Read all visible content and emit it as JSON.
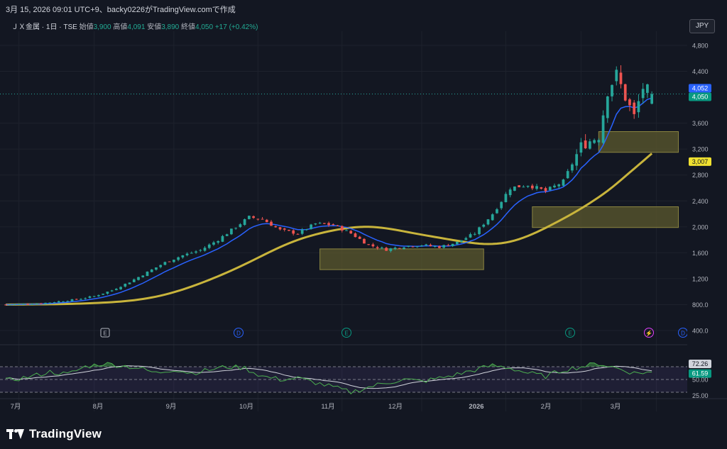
{
  "header": {
    "caption": "3月 15, 2026 09:01 UTC+9、backy0226がTradingView.comで作成"
  },
  "legend": {
    "symbol": "ＪＸ金属 · 1日 · TSE",
    "open_label": "始値",
    "open": "3,900",
    "high_label": "高値",
    "high": "4,091",
    "low_label": "安値",
    "low": "3,890",
    "close_label": "終値",
    "close": "4,050",
    "change": "+17 (+0.42%)"
  },
  "currency_button": "JPY",
  "price_axis": {
    "ticks": [
      "4,800",
      "4,400",
      "3,600",
      "3,200",
      "2,800",
      "2,400",
      "2,000",
      "1,600",
      "1,200",
      "800.0",
      "400.0"
    ],
    "ticks_values": [
      4800,
      4400,
      3600,
      3200,
      2800,
      2400,
      2000,
      1600,
      1200,
      800,
      400
    ],
    "labels": [
      {
        "text": "4,052",
        "value": 4052,
        "color": "#2962ff"
      },
      {
        "text": "4,050",
        "value": 4050,
        "color": "#089981"
      },
      {
        "text": "3,007",
        "value": 3007,
        "color": "#f0e130",
        "text_color": "#131722"
      }
    ]
  },
  "oscillator_axis": {
    "ticks": [
      "50.00",
      "25.00"
    ],
    "labels": [
      {
        "text": "72.26",
        "value": 72.26,
        "color": "#d1d4dc",
        "text_color": "#131722"
      },
      {
        "text": "61.59",
        "value": 61.59,
        "color": "#089981"
      }
    ]
  },
  "time_axis": [
    "7月",
    "8月",
    "9月",
    "10月",
    "11月",
    "12月",
    "2026",
    "2月",
    "3月"
  ],
  "event_markers": [
    {
      "letter": "E",
      "type": "earnings",
      "color": "#b2b5be"
    },
    {
      "letter": "D",
      "type": "dividend",
      "color": "#2962ff"
    },
    {
      "letter": "E",
      "type": "earnings",
      "color": "#089981"
    },
    {
      "letter": "E",
      "type": "earnings",
      "color": "#089981"
    },
    {
      "letter": "⚡",
      "type": "split",
      "color": "#e040fb"
    },
    {
      "letter": "D",
      "type": "dividend",
      "color": "#2962ff"
    }
  ],
  "colors": {
    "up": "#26a69a",
    "down": "#ef5350",
    "ema_fast": "#2962ff",
    "ma_slow": "#c8b43c",
    "zone": "#5c5a2e",
    "rsi": "#4caf50",
    "rsi_signal": "#d1d4dc",
    "background": "#131722"
  },
  "footer": {
    "logo_text": "TradingView"
  },
  "chart_data": {
    "type": "candlestick",
    "symbol": "ＪＸ金属",
    "interval": "1日",
    "exchange": "TSE",
    "ylim": [
      380,
      4900
    ],
    "anchors": [
      [
        0,
        800
      ],
      [
        4,
        810
      ],
      [
        8,
        820
      ],
      [
        12,
        850
      ],
      [
        16,
        880
      ],
      [
        20,
        930
      ],
      [
        24,
        1020
      ],
      [
        28,
        1150
      ],
      [
        32,
        1300
      ],
      [
        36,
        1450
      ],
      [
        40,
        1560
      ],
      [
        44,
        1640
      ],
      [
        48,
        1800
      ],
      [
        52,
        2000
      ],
      [
        55,
        2150
      ],
      [
        58,
        2120
      ],
      [
        62,
        1950
      ],
      [
        66,
        1900
      ],
      [
        70,
        2050
      ],
      [
        74,
        2030
      ],
      [
        78,
        1900
      ],
      [
        82,
        1720
      ],
      [
        86,
        1650
      ],
      [
        90,
        1700
      ],
      [
        94,
        1720
      ],
      [
        98,
        1690
      ],
      [
        102,
        1760
      ],
      [
        106,
        1900
      ],
      [
        110,
        2200
      ],
      [
        114,
        2600
      ],
      [
        118,
        2650
      ],
      [
        122,
        2550
      ],
      [
        126,
        2700
      ],
      [
        130,
        3250
      ],
      [
        134,
        3400
      ],
      [
        136,
        4100
      ],
      [
        138,
        4350
      ],
      [
        140,
        4000
      ],
      [
        142,
        3700
      ],
      [
        144,
        4150
      ],
      [
        146,
        4050
      ]
    ],
    "series": [
      {
        "name": "EMA (fast)",
        "type": "line",
        "color": "#2962ff"
      },
      {
        "name": "MA (slow)",
        "type": "line",
        "color": "#c8b43c"
      }
    ],
    "zones": [
      {
        "x_from": 71,
        "x_to": 108,
        "y_from": 1340,
        "y_to": 1660
      },
      {
        "x_from": 119,
        "x_to": 152,
        "y_from": 1990,
        "y_to": 2310
      },
      {
        "x_from": 134,
        "x_to": 152,
        "y_from": 3150,
        "y_to": 3470
      }
    ],
    "last": {
      "open": 3900,
      "high": 4091,
      "low": 3890,
      "close": 4050,
      "change": 17,
      "change_pct": 0.42
    },
    "oscillator": {
      "name": "RSI",
      "band": [
        30,
        70
      ],
      "last_value": 61.59,
      "signal_value": 72.26,
      "anchors": [
        [
          0,
          48
        ],
        [
          6,
          55
        ],
        [
          10,
          62
        ],
        [
          14,
          58
        ],
        [
          18,
          70
        ],
        [
          22,
          75
        ],
        [
          26,
          72
        ],
        [
          30,
          68
        ],
        [
          34,
          60
        ],
        [
          38,
          66
        ],
        [
          42,
          60
        ],
        [
          46,
          65
        ],
        [
          50,
          70
        ],
        [
          54,
          68
        ],
        [
          58,
          55
        ],
        [
          62,
          50
        ],
        [
          66,
          52
        ],
        [
          70,
          45
        ],
        [
          74,
          38
        ],
        [
          78,
          30
        ],
        [
          82,
          38
        ],
        [
          86,
          45
        ],
        [
          90,
          50
        ],
        [
          94,
          47
        ],
        [
          98,
          52
        ],
        [
          102,
          58
        ],
        [
          106,
          65
        ],
        [
          110,
          72
        ],
        [
          114,
          68
        ],
        [
          118,
          60
        ],
        [
          122,
          55
        ],
        [
          126,
          65
        ],
        [
          130,
          70
        ],
        [
          134,
          75
        ],
        [
          138,
          68
        ],
        [
          142,
          60
        ],
        [
          146,
          62
        ]
      ]
    }
  }
}
